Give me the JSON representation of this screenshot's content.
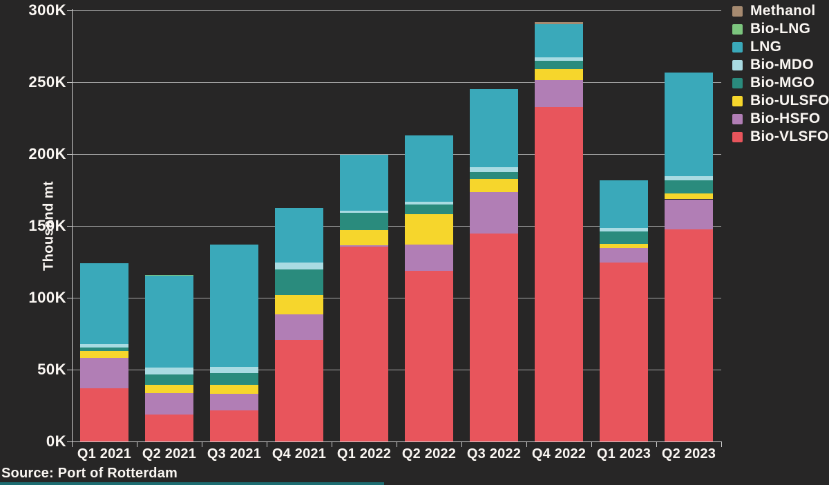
{
  "source_note": "Source: Port of Rotterdam",
  "colors": {
    "background": "#272626",
    "grid": "#c9c9c9",
    "axis": "#d2d2d2",
    "text": "#faf6f2",
    "footer_strip": "#1d6d72"
  },
  "chart_data": {
    "type": "bar",
    "stacked": true,
    "ylabel": "Thousand mt",
    "xlabel": "",
    "ylim": [
      0,
      300
    ],
    "ytick_step": 50,
    "yticks": [
      0,
      50,
      100,
      150,
      200,
      250,
      300
    ],
    "ytick_labels": [
      "0K",
      "50K",
      "100K",
      "150K",
      "200K",
      "250K",
      "300K"
    ],
    "grid": "horizontal",
    "legend_position": "top-right",
    "legend_order_top_to_bottom": [
      "Methanol",
      "Bio-LNG",
      "LNG",
      "Bio-MDO",
      "Bio-MGO",
      "Bio-ULSFO",
      "Bio-HSFO",
      "Bio-VLSFO"
    ],
    "categories": [
      "Q1 2021",
      "Q2 2021",
      "Q3 2021",
      "Q4 2021",
      "Q1 2022",
      "Q2 2022",
      "Q3 2022",
      "Q4 2022",
      "Q1 2023",
      "Q2 2023"
    ],
    "series": [
      {
        "name": "Bio-VLSFO",
        "color": "#e8555c",
        "values": [
          37.5,
          19,
          22,
          71,
          136,
          119,
          145,
          233,
          125,
          148
        ]
      },
      {
        "name": "Bio-HSFO",
        "color": "#b17eb5",
        "values": [
          21,
          15,
          11.5,
          18,
          1,
          18.5,
          29,
          19,
          10,
          21
        ]
      },
      {
        "name": "Bio-ULSFO",
        "color": "#f6d62c",
        "values": [
          5,
          6,
          6.5,
          13.5,
          10.5,
          21,
          9,
          7.5,
          3,
          4
        ]
      },
      {
        "name": "Bio-MGO",
        "color": "#2a8b7d",
        "values": [
          2.5,
          7,
          8,
          17.5,
          12,
          7,
          5,
          6,
          8.5,
          9
        ]
      },
      {
        "name": "Bio-MDO",
        "color": "#a9dbe2",
        "values": [
          2.5,
          5,
          4.5,
          5,
          1.5,
          2,
          3.5,
          2.5,
          2.5,
          3
        ]
      },
      {
        "name": "LNG",
        "color": "#3aa9ba",
        "values": [
          56,
          64,
          85,
          38,
          39,
          46,
          54,
          23,
          33,
          72
        ]
      },
      {
        "name": "Bio-LNG",
        "color": "#7cc57e",
        "values": [
          0,
          0.5,
          0,
          0,
          0,
          0,
          0,
          0,
          0,
          0
        ]
      },
      {
        "name": "Methanol",
        "color": "#a68a70",
        "values": [
          0,
          0,
          0,
          0,
          0,
          0,
          0,
          1.5,
          0,
          0
        ]
      }
    ]
  }
}
